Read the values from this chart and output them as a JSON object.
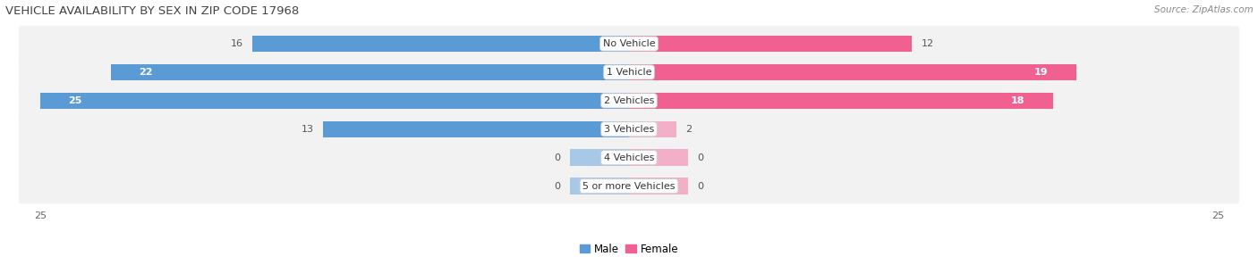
{
  "title": "VEHICLE AVAILABILITY BY SEX IN ZIP CODE 17968",
  "source": "Source: ZipAtlas.com",
  "categories": [
    "No Vehicle",
    "1 Vehicle",
    "2 Vehicles",
    "3 Vehicles",
    "4 Vehicles",
    "5 or more Vehicles"
  ],
  "male_values": [
    16,
    22,
    25,
    13,
    0,
    0
  ],
  "female_values": [
    12,
    19,
    18,
    2,
    0,
    0
  ],
  "male_color_strong": "#5b9bd5",
  "male_color_light": "#a8c8e8",
  "female_color_strong": "#f06090",
  "female_color_light": "#f4afc8",
  "male_label": "Male",
  "female_label": "Female",
  "xlim": 25,
  "bar_height": 0.58,
  "row_bg_color": "#f2f2f2",
  "title_fontsize": 9.5,
  "label_fontsize": 8,
  "value_fontsize": 8,
  "axis_tick_fontsize": 8,
  "source_fontsize": 7.5,
  "strong_threshold": 10,
  "inside_threshold_male": 18,
  "inside_threshold_female": 15,
  "zero_bar_width": 2.5
}
